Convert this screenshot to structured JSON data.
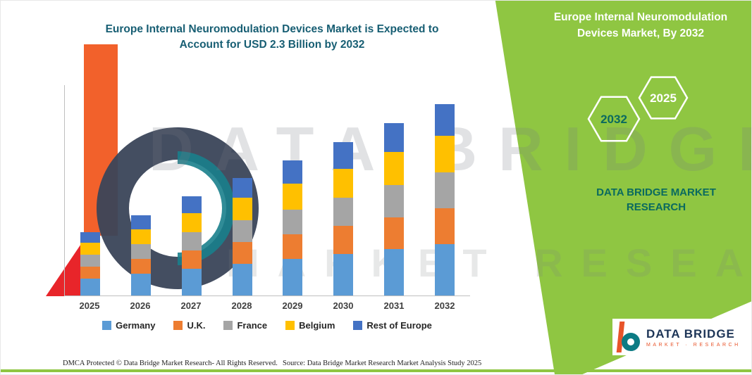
{
  "header": {
    "title_lines": [
      "Europe Internal Neuromodulation Devices Market is Expected to",
      "Account for USD 2.3 Billion by 2032"
    ]
  },
  "side_panel": {
    "title_lines": [
      "Europe Internal Neuromodulation",
      "Devices Market, By 2032"
    ],
    "hexagons": [
      "2032",
      "2025"
    ],
    "brand_lines": [
      "DATA BRIDGE MARKET",
      "RESEARCH"
    ],
    "accent_green": "#8FC642"
  },
  "chart_data": {
    "type": "bar",
    "stacked": true,
    "title": "Europe Internal Neuromodulation Devices Market is Expected to Account for USD 2.3 Billion by 2032",
    "unit": "USD Billion",
    "categories": [
      "2025",
      "2026",
      "2027",
      "2028",
      "2029",
      "2030",
      "2031",
      "2032"
    ],
    "series": [
      {
        "name": "Germany",
        "color": "#5B9BD5",
        "values": [
          0.2,
          0.26,
          0.32,
          0.38,
          0.44,
          0.5,
          0.56,
          0.62
        ]
      },
      {
        "name": "U.K.",
        "color": "#ED7D31",
        "values": [
          0.14,
          0.18,
          0.22,
          0.26,
          0.3,
          0.34,
          0.38,
          0.43
        ]
      },
      {
        "name": "France",
        "color": "#A5A5A5",
        "values": [
          0.14,
          0.18,
          0.22,
          0.26,
          0.3,
          0.34,
          0.39,
          0.43
        ]
      },
      {
        "name": "Belgium",
        "color": "#FFC000",
        "values": [
          0.14,
          0.18,
          0.23,
          0.27,
          0.31,
          0.35,
          0.4,
          0.44
        ]
      },
      {
        "name": "Rest of Europe",
        "color": "#4472C4",
        "values": [
          0.13,
          0.17,
          0.2,
          0.24,
          0.28,
          0.32,
          0.35,
          0.38
        ]
      }
    ],
    "totals": [
      0.75,
      0.97,
      1.19,
      1.41,
      1.63,
      1.85,
      2.08,
      2.3
    ],
    "ylim": [
      0,
      2.5
    ],
    "grid": false,
    "legend_position": "bottom"
  },
  "watermark": {
    "line1": "DATA BRIDGE",
    "line2": "MARKET RESEARCH"
  },
  "footer": {
    "dmca": "DMCA Protected © Data Bridge Market Research-  All Rights Reserved.",
    "source": "Source: Data Bridge Market Research  Market Analysis Study 2025"
  },
  "logo": {
    "name": "DATA BRIDGE",
    "subtitle": "MARKET · RESEARCH"
  }
}
